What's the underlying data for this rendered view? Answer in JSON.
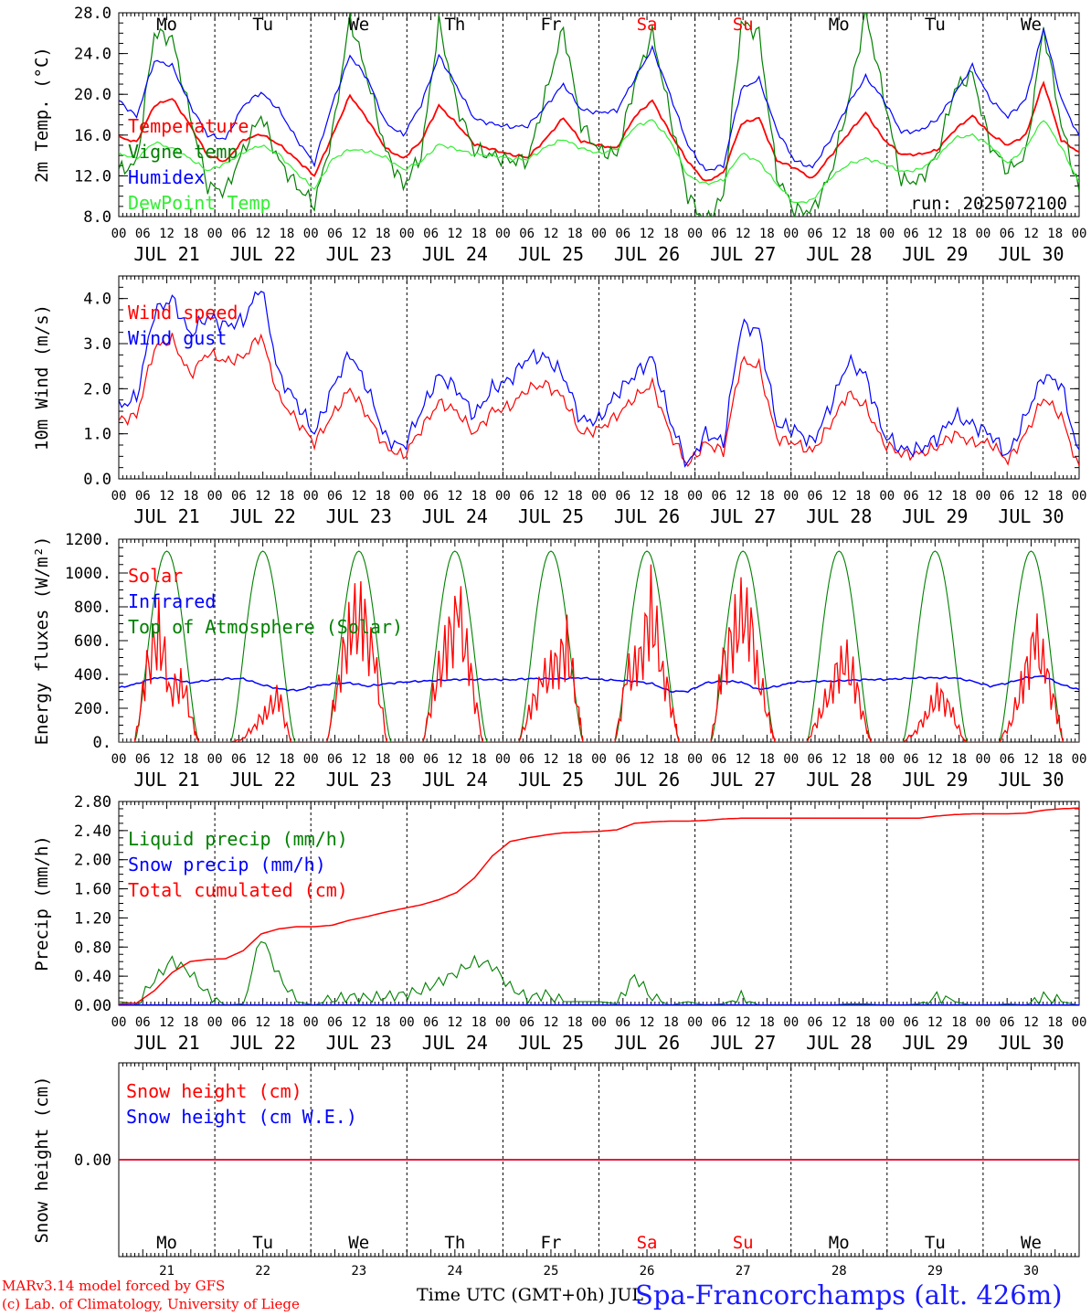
{
  "colors": {
    "red": "#ff0000",
    "blue": "#0000ff",
    "dark_green": "#008000",
    "light_green": "#33ee33",
    "station_blue": "#1a1aff"
  },
  "footer": {
    "credit_line1": "MARv3.14 model forced by GFS",
    "credit_line2": "(c) Lab. of Climatology, University of Liege",
    "xaxis_title": "Time UTC (GMT+0h) JUL",
    "station": "Spa-Francorchamps (alt. 426m)"
  },
  "chart_data": [
    {
      "type": "line",
      "ylabel": "2m Temp. (°C)",
      "ylim": [
        8,
        28
      ],
      "yticks": [
        "8.0",
        "12.0",
        "16.0",
        "20.0",
        "24.0",
        "28.0"
      ],
      "xtick_hours": [
        "00",
        "06",
        "12",
        "18"
      ],
      "date_labels": [
        "JUL 21",
        "JUL 22",
        "JUL 23",
        "JUL 24",
        "JUL 25",
        "JUL 26",
        "JUL 27",
        "JUL 28",
        "JUL 29",
        "JUL 30"
      ],
      "weekdays": [
        {
          "label": "Mo",
          "weekend": false
        },
        {
          "label": "Tu",
          "weekend": false
        },
        {
          "label": "We",
          "weekend": false
        },
        {
          "label": "Th",
          "weekend": false
        },
        {
          "label": "Fr",
          "weekend": false
        },
        {
          "label": "Sa",
          "weekend": true
        },
        {
          "label": "Su",
          "weekend": true
        },
        {
          "label": "Mo",
          "weekend": false
        },
        {
          "label": "Tu",
          "weekend": false
        },
        {
          "label": "We",
          "weekend": false
        }
      ],
      "annotation": "run: 2025072100",
      "x_hours_step": 6,
      "series": [
        {
          "name": "Temperature",
          "color": "red",
          "values": [
            15.8,
            15.3,
            18.9,
            19.6,
            17.0,
            14.0,
            13.4,
            15.5,
            16.1,
            15.1,
            13.6,
            12.0,
            15.9,
            19.9,
            17.5,
            14.7,
            13.7,
            15.4,
            18.9,
            17.1,
            15.1,
            14.6,
            14.1,
            13.8,
            15.6,
            17.7,
            15.4,
            15.0,
            14.7,
            17.8,
            19.4,
            16.2,
            13.4,
            11.4,
            12.3,
            17.1,
            17.7,
            13.5,
            12.8,
            11.7,
            13.9,
            16.1,
            18.2,
            15.6,
            14.1,
            14.1,
            14.5,
            16.5,
            17.9,
            16.1,
            15.0,
            16.0,
            21.2,
            15.5,
            14.3
          ]
        },
        {
          "name": "Vigne temp",
          "color": "dark_green",
          "values": [
            12.5,
            13.2,
            26.0,
            25.5,
            18.0,
            11.0,
            10.5,
            14.5,
            18.0,
            13.5,
            11.0,
            9.2,
            16.0,
            27.5,
            21.5,
            14.5,
            11.0,
            14.0,
            27.0,
            19.0,
            14.5,
            14.0,
            13.5,
            13.5,
            20.0,
            26.5,
            17.0,
            14.5,
            14.0,
            21.0,
            26.0,
            18.0,
            10.0,
            7.5,
            10.0,
            27.0,
            26.0,
            12.0,
            8.6,
            8.6,
            12.0,
            19.0,
            28.0,
            20.0,
            11.5,
            11.5,
            14.0,
            20.5,
            22.0,
            15.0,
            12.5,
            14.0,
            26.5,
            17.0,
            10.5
          ]
        },
        {
          "name": "Humidex",
          "color": "blue",
          "values": [
            19.4,
            17.8,
            23.3,
            22.8,
            19.0,
            16.0,
            15.6,
            18.9,
            20.2,
            18.5,
            15.6,
            13.2,
            19.0,
            23.8,
            21.5,
            17.2,
            16.0,
            19.0,
            23.8,
            20.8,
            17.6,
            17.1,
            16.8,
            16.9,
            18.8,
            21.0,
            18.5,
            18.2,
            18.4,
            21.5,
            24.5,
            20.0,
            15.0,
            12.5,
            13.0,
            20.5,
            21.5,
            16.5,
            13.5,
            12.8,
            15.5,
            19.0,
            21.7,
            19.5,
            16.3,
            16.4,
            17.5,
            20.0,
            22.8,
            19.5,
            17.8,
            19.5,
            26.5,
            19.5,
            15.8
          ]
        },
        {
          "name": "DewPoint Temp",
          "color": "light_green",
          "values": [
            14.2,
            13.7,
            15.3,
            14.7,
            13.7,
            12.5,
            13.2,
            14.3,
            15.0,
            14.1,
            12.3,
            10.7,
            13.6,
            14.6,
            14.4,
            13.8,
            12.6,
            13.4,
            15.1,
            14.6,
            14.1,
            14.0,
            13.7,
            13.6,
            14.8,
            15.6,
            14.7,
            14.2,
            14.6,
            16.8,
            17.5,
            15.5,
            12.0,
            11.2,
            11.6,
            14.2,
            13.4,
            11.2,
            9.3,
            9.6,
            11.8,
            13.1,
            13.7,
            13.2,
            12.4,
            12.6,
            13.8,
            15.7,
            16.0,
            15.0,
            13.2,
            14.8,
            17.6,
            14.8,
            11.3
          ]
        }
      ]
    },
    {
      "type": "line",
      "ylabel": "10m Wind (m/s)",
      "ylim": [
        0,
        4.5
      ],
      "yticks": [
        "0.0",
        "1.0",
        "2.0",
        "3.0",
        "4.0"
      ],
      "x_hours_step": 6,
      "series": [
        {
          "name": "Wind speed",
          "color": "red",
          "values": [
            1.3,
            1.4,
            2.9,
            3.1,
            2.3,
            2.8,
            2.6,
            2.7,
            3.2,
            1.8,
            1.3,
            0.8,
            1.4,
            2.0,
            1.4,
            0.7,
            0.5,
            1.1,
            1.7,
            1.5,
            1.0,
            1.5,
            1.6,
            2.0,
            2.1,
            1.8,
            1.0,
            1.1,
            1.4,
            1.8,
            2.1,
            1.0,
            0.3,
            0.8,
            0.6,
            2.6,
            2.5,
            0.9,
            0.8,
            0.6,
            1.2,
            1.9,
            1.6,
            0.8,
            0.55,
            0.55,
            0.7,
            1.0,
            0.8,
            0.8,
            0.4,
            1.0,
            1.8,
            1.4,
            0.2
          ]
        },
        {
          "name": "Wind gust",
          "color": "blue",
          "values": [
            1.6,
            1.8,
            3.7,
            4.0,
            3.2,
            3.6,
            3.4,
            3.5,
            4.3,
            2.3,
            1.7,
            1.0,
            2.0,
            2.8,
            2.0,
            0.9,
            0.7,
            1.5,
            2.3,
            2.0,
            1.4,
            2.0,
            2.2,
            2.7,
            2.7,
            2.3,
            1.3,
            1.3,
            1.9,
            2.3,
            2.7,
            1.3,
            0.3,
            1.0,
            0.8,
            3.4,
            3.3,
            1.2,
            1.1,
            0.8,
            1.6,
            2.6,
            2.3,
            1.0,
            0.65,
            0.65,
            0.9,
            1.4,
            1.2,
            1.0,
            0.5,
            1.4,
            2.3,
            2.1,
            0.5
          ]
        }
      ]
    },
    {
      "type": "line",
      "ylabel": "Energy fluxes (W/m²)",
      "ylim": [
        0,
        1200
      ],
      "yticks": [
        "0.",
        "200.",
        "400.",
        "600.",
        "800.",
        "1000.",
        "1200."
      ],
      "x_hours_step": 6,
      "series": [
        {
          "name": "Solar",
          "color": "red",
          "days": [
            [
              0,
              420,
              650,
              300,
              350,
              60,
              0
            ],
            [
              0,
              20,
              100,
              180,
              270,
              0,
              0
            ],
            [
              0,
              380,
              700,
              720,
              450,
              0,
              0
            ],
            [
              0,
              330,
              560,
              750,
              380,
              0,
              0
            ],
            [
              0,
              200,
              360,
              430,
              560,
              180,
              0
            ],
            [
              0,
              380,
              450,
              780,
              420,
              120,
              0
            ],
            [
              0,
              450,
              650,
              800,
              380,
              80,
              0
            ],
            [
              0,
              150,
              320,
              500,
              350,
              60,
              0
            ],
            [
              0,
              60,
              170,
              280,
              180,
              20,
              0
            ],
            [
              0,
              120,
              350,
              600,
              380,
              120,
              0
            ]
          ]
        },
        {
          "name": "Infrared",
          "color": "blue",
          "values": [
            320,
            345,
            380,
            375,
            350,
            365,
            375,
            375,
            340,
            315,
            305,
            330,
            345,
            350,
            330,
            345,
            355,
            360,
            365,
            370,
            370,
            370,
            368,
            375,
            375,
            375,
            380,
            370,
            365,
            360,
            345,
            300,
            300,
            350,
            360,
            355,
            310,
            330,
            355,
            360,
            360,
            365,
            370,
            370,
            375,
            380,
            380,
            380,
            360,
            330,
            350,
            380,
            390,
            340,
            310
          ]
        },
        {
          "name": "Top of Atmosphere (Solar)",
          "color": "dark_green",
          "peak": 1130
        }
      ]
    },
    {
      "type": "line",
      "ylabel": "Precip (mm/h)",
      "ylim": [
        0,
        2.8
      ],
      "yticks": [
        "0.00",
        "0.40",
        "0.80",
        "1.20",
        "1.60",
        "2.00",
        "2.40",
        "2.80"
      ],
      "x_hours_step": 6,
      "series": [
        {
          "name": "Liquid precip (mm/h)",
          "color": "dark_green",
          "values": [
            0.05,
            0.02,
            0.35,
            0.62,
            0.45,
            0.15,
            0.0,
            0.02,
            0.95,
            0.4,
            0.05,
            0.0,
            0.08,
            0.12,
            0.1,
            0.12,
            0.15,
            0.2,
            0.32,
            0.45,
            0.6,
            0.55,
            0.25,
            0.1,
            0.15,
            0.05,
            0.05,
            0.05,
            0.02,
            0.4,
            0.1,
            0.0,
            0.05,
            0.0,
            0.02,
            0.12,
            0.0,
            0.0,
            0.0,
            0.0,
            0.0,
            0.02,
            0.02,
            0.0,
            0.0,
            0.02,
            0.12,
            0.05,
            0.0,
            0.0,
            0.02,
            0.0,
            0.12,
            0.05,
            0.0
          ]
        },
        {
          "name": "Snow precip (mm/h)",
          "color": "blue",
          "values": [
            0,
            0,
            0,
            0,
            0,
            0,
            0,
            0,
            0,
            0,
            0,
            0,
            0,
            0,
            0,
            0,
            0,
            0,
            0,
            0,
            0,
            0,
            0,
            0,
            0,
            0,
            0,
            0,
            0,
            0,
            0,
            0,
            0,
            0,
            0,
            0,
            0,
            0,
            0,
            0,
            0,
            0,
            0,
            0,
            0,
            0,
            0,
            0,
            0,
            0,
            0,
            0,
            0,
            0,
            0
          ]
        },
        {
          "name": "Total cumulated (cm)",
          "color": "red",
          "values": [
            0.02,
            0.03,
            0.2,
            0.45,
            0.6,
            0.63,
            0.64,
            0.75,
            0.98,
            1.05,
            1.08,
            1.08,
            1.1,
            1.17,
            1.22,
            1.28,
            1.33,
            1.38,
            1.45,
            1.55,
            1.75,
            2.05,
            2.25,
            2.3,
            2.34,
            2.37,
            2.38,
            2.39,
            2.41,
            2.5,
            2.52,
            2.53,
            2.53,
            2.54,
            2.56,
            2.57,
            2.57,
            2.57,
            2.57,
            2.57,
            2.57,
            2.57,
            2.57,
            2.57,
            2.57,
            2.57,
            2.6,
            2.62,
            2.63,
            2.63,
            2.63,
            2.64,
            2.68,
            2.7,
            2.71
          ]
        }
      ]
    },
    {
      "type": "line",
      "ylabel": "Snow height (cm)",
      "ylim": [
        -1,
        1
      ],
      "yticks": [
        "0.00"
      ],
      "day_numbers": [
        "21",
        "22",
        "23",
        "24",
        "25",
        "26",
        "27",
        "28",
        "29",
        "30"
      ],
      "x_hours_step": 6,
      "series": [
        {
          "name": "Snow height (cm)",
          "color": "red",
          "values": [
            0,
            0
          ]
        },
        {
          "name": "Snow height (cm W.E.)",
          "color": "blue",
          "values": [
            0,
            0
          ]
        }
      ]
    }
  ]
}
